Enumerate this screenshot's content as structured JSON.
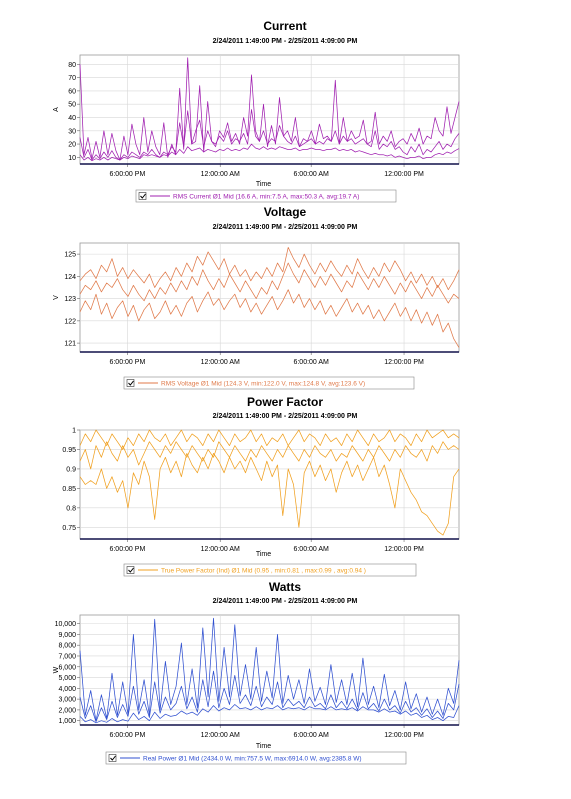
{
  "chart_data": [
    {
      "type": "line",
      "title": "Current",
      "subtitle": "2/24/2011 1:49:00 PM - 2/25/2011 4:09:00 PM",
      "xlabel": "Time",
      "ylabel": "A",
      "x_ticks": [
        "6:00:00 PM",
        "12:00:00 AM",
        "6:00:00 AM",
        "12:00:00 PM"
      ],
      "y_ticks": [
        10,
        20,
        30,
        40,
        50,
        60,
        70,
        80
      ],
      "ylim": [
        5,
        87
      ],
      "legend": "bottom",
      "legend_text": "RMS Current Ø1 Mid (16.6 A, min:7.5 A, max:50.3 A, avg:19.7 A)",
      "color": "#a020b0",
      "series": [
        {
          "values": [
            80,
            12,
            25,
            9,
            22,
            10,
            30,
            12,
            28,
            15,
            8,
            26,
            12,
            35,
            20,
            12,
            40,
            14,
            30,
            18,
            12,
            36,
            10,
            20,
            12,
            62,
            16,
            85,
            20,
            22,
            64,
            14,
            52,
            22,
            18,
            30,
            25,
            36,
            22,
            28,
            20,
            40,
            26,
            72,
            30,
            22,
            50,
            18,
            34,
            20,
            55,
            26,
            30,
            22,
            40,
            18,
            24,
            22,
            30,
            20,
            35,
            24,
            26,
            22,
            68,
            20,
            40,
            22,
            30,
            24,
            26,
            38,
            20,
            22,
            44,
            20,
            26,
            22,
            30,
            18,
            22,
            24,
            20,
            28,
            22,
            32,
            20,
            26,
            24,
            40,
            30,
            26,
            48,
            28,
            40,
            52
          ]
        },
        {
          "values": [
            25,
            10,
            16,
            8,
            12,
            9,
            14,
            10,
            15,
            10,
            8,
            12,
            10,
            14,
            12,
            10,
            14,
            12,
            16,
            12,
            10,
            14,
            12,
            18,
            14,
            36,
            18,
            45,
            20,
            30,
            38,
            18,
            30,
            22,
            20,
            26,
            22,
            30,
            20,
            24,
            22,
            28,
            20,
            46,
            26,
            22,
            30,
            20,
            24,
            22,
            34,
            26,
            22,
            20,
            26,
            18,
            20,
            22,
            24,
            20,
            22,
            20,
            24,
            22,
            30,
            20,
            26,
            22,
            24,
            20,
            22,
            24,
            20,
            18,
            30,
            16,
            20,
            18,
            22,
            16,
            18,
            14,
            12,
            18,
            14,
            20,
            12,
            16,
            14,
            18,
            22,
            16,
            20,
            18,
            24,
            28
          ]
        },
        {
          "values": [
            12,
            8,
            10,
            7.5,
            9,
            8,
            10,
            8,
            10,
            9,
            8,
            10,
            9,
            11,
            10,
            9,
            12,
            11,
            12,
            11,
            10,
            12,
            11,
            14,
            12,
            16,
            13,
            18,
            15,
            16,
            17,
            14,
            16,
            15,
            14,
            16,
            15,
            17,
            15,
            16,
            15,
            17,
            16,
            20,
            17,
            16,
            18,
            16,
            17,
            16,
            18,
            17,
            16,
            16,
            17,
            15,
            16,
            16,
            17,
            16,
            16,
            15,
            16,
            16,
            17,
            15,
            16,
            15,
            16,
            14,
            15,
            14,
            13,
            12,
            13,
            12,
            12,
            11,
            12,
            10,
            11,
            10,
            9,
            10,
            10,
            11,
            9,
            10,
            10,
            12,
            13,
            12,
            14,
            13,
            15,
            16.6
          ]
        }
      ]
    },
    {
      "type": "line",
      "title": "Voltage",
      "subtitle": "2/24/2011 1:49:00 PM - 2/25/2011 4:09:00 PM",
      "xlabel": "",
      "ylabel": "V",
      "x_ticks": [
        "6:00:00 PM",
        "12:00:00 AM",
        "6:00:00 AM",
        "12:00:00 PM"
      ],
      "y_ticks": [
        121,
        122,
        123,
        124,
        125
      ],
      "ylim": [
        120.6,
        125.5
      ],
      "legend": "bottom",
      "legend_text": "RMS Voltage Ø1 Mid (124.3 V, min:122.0 V, max:124.8 V, avg:123.6 V)",
      "color": "#e07a4a",
      "series": [
        {
          "values": [
            123.8,
            124.1,
            124.3,
            123.9,
            124.5,
            124.2,
            124.8,
            124.0,
            124.4,
            123.9,
            124.3,
            124.0,
            123.7,
            124.1,
            123.5,
            123.9,
            124.2,
            123.8,
            124.4,
            124.0,
            124.6,
            124.2,
            124.9,
            124.5,
            125.1,
            124.7,
            124.3,
            124.8,
            124.1,
            124.5,
            124.0,
            124.3,
            123.8,
            124.2,
            123.9,
            124.4,
            124.0,
            124.6,
            124.2,
            125.3,
            124.8,
            124.4,
            125.0,
            124.5,
            124.1,
            124.6,
            124.2,
            124.7,
            124.3,
            124.0,
            124.5,
            124.1,
            124.8,
            124.3,
            123.9,
            124.4,
            124.0,
            124.6,
            124.2,
            124.7,
            124.3,
            123.8,
            124.2,
            123.7,
            124.1,
            123.6,
            124.0,
            123.5,
            123.9,
            123.4,
            123.8,
            124.3
          ]
        },
        {
          "values": [
            123.2,
            123.6,
            123.4,
            123.8,
            123.3,
            123.7,
            123.5,
            123.9,
            123.4,
            123.1,
            123.6,
            123.2,
            122.9,
            123.4,
            123.0,
            123.5,
            123.2,
            123.7,
            123.3,
            123.8,
            123.4,
            124.0,
            123.6,
            124.3,
            123.8,
            123.4,
            123.9,
            123.5,
            124.1,
            123.7,
            123.3,
            123.8,
            123.4,
            123.0,
            123.5,
            123.2,
            123.8,
            123.4,
            124.0,
            124.6,
            124.1,
            123.7,
            124.3,
            123.9,
            123.5,
            124.0,
            123.6,
            124.1,
            123.7,
            123.3,
            123.8,
            123.5,
            124.2,
            123.8,
            123.4,
            123.9,
            123.5,
            124.0,
            123.6,
            123.2,
            123.7,
            123.3,
            123.8,
            123.4,
            123.0,
            123.5,
            123.1,
            123.6,
            123.2,
            122.8,
            123.2,
            123.0
          ]
        },
        {
          "values": [
            122.4,
            122.9,
            122.5,
            123.2,
            122.3,
            122.8,
            122.1,
            122.6,
            122.9,
            122.2,
            122.7,
            122.0,
            122.5,
            122.8,
            122.1,
            122.4,
            122.9,
            122.3,
            122.7,
            122.2,
            122.8,
            123.1,
            122.4,
            122.9,
            123.3,
            122.7,
            123.0,
            122.5,
            122.9,
            123.2,
            122.6,
            123.0,
            122.4,
            122.8,
            122.3,
            122.7,
            123.1,
            122.5,
            122.9,
            123.4,
            122.8,
            123.2,
            122.6,
            123.0,
            122.5,
            122.9,
            122.3,
            122.7,
            122.2,
            122.6,
            123.0,
            122.4,
            122.8,
            122.3,
            122.7,
            122.1,
            122.5,
            122.0,
            122.4,
            122.8,
            122.2,
            122.6,
            122.0,
            122.5,
            121.9,
            122.4,
            121.8,
            122.3,
            121.5,
            121.9,
            121.2,
            120.8
          ]
        }
      ]
    },
    {
      "type": "line",
      "title": "Power Factor",
      "subtitle": "2/24/2011 1:49:00 PM - 2/25/2011 4:09:00 PM",
      "xlabel": "Time",
      "ylabel": "",
      "x_ticks": [
        "6:00:00 PM",
        "12:00:00 AM",
        "6:00:00 AM",
        "12:00:00 PM"
      ],
      "y_ticks": [
        0.75,
        0.8,
        0.85,
        0.9,
        0.95,
        1
      ],
      "ylim": [
        0.72,
        1.0
      ],
      "legend": "bottom",
      "legend_text": "True Power Factor (Ind) Ø1 Mid (0.95 , min:0.81 , max:0.99 , avg:0.94 )",
      "color": "#f0a020",
      "series": [
        {
          "values": [
            0.96,
            0.99,
            0.97,
            1.0,
            0.98,
            0.96,
            0.99,
            0.97,
            0.95,
            0.98,
            0.96,
            0.99,
            0.97,
            1.0,
            0.98,
            0.97,
            0.99,
            0.96,
            0.98,
            1.0,
            0.97,
            0.99,
            0.98,
            0.96,
            0.99,
            0.97,
            1.0,
            0.98,
            0.96,
            0.99,
            0.97,
            0.98,
            1.0,
            0.97,
            0.99,
            0.96,
            0.98,
            0.97,
            0.99,
            0.96,
            0.98,
            1.0,
            0.97,
            0.99,
            0.98,
            0.96,
            0.99,
            0.97,
            0.98,
            0.96,
            0.99,
            0.97,
            1.0,
            0.98,
            0.96,
            0.99,
            0.97,
            0.98,
            1.0,
            0.97,
            0.99,
            0.98,
            0.96,
            0.99,
            0.97,
            1.0,
            0.98,
            0.99,
            1.0,
            0.98,
            0.99,
            0.98
          ]
        },
        {
          "values": [
            0.92,
            0.95,
            0.9,
            0.96,
            0.93,
            0.97,
            0.94,
            0.92,
            0.96,
            0.93,
            0.95,
            0.91,
            0.94,
            0.97,
            0.95,
            0.93,
            0.96,
            0.94,
            0.97,
            0.95,
            0.93,
            0.96,
            0.94,
            0.92,
            0.95,
            0.93,
            0.97,
            0.95,
            0.93,
            0.96,
            0.94,
            0.92,
            0.95,
            0.93,
            0.96,
            0.94,
            0.92,
            0.95,
            0.93,
            0.96,
            0.94,
            0.92,
            0.95,
            0.93,
            0.96,
            0.94,
            0.93,
            0.95,
            0.92,
            0.94,
            0.93,
            0.96,
            0.94,
            0.92,
            0.95,
            0.93,
            0.96,
            0.94,
            0.92,
            0.95,
            0.93,
            0.96,
            0.94,
            0.93,
            0.95,
            0.92,
            0.96,
            0.94,
            0.97,
            0.95,
            0.96,
            0.95
          ]
        },
        {
          "values": [
            0.88,
            0.86,
            0.87,
            0.86,
            0.9,
            0.85,
            0.88,
            0.84,
            0.87,
            0.8,
            0.89,
            0.86,
            0.92,
            0.88,
            0.77,
            0.9,
            0.93,
            0.89,
            0.92,
            0.88,
            0.94,
            0.91,
            0.89,
            0.93,
            0.9,
            0.94,
            0.92,
            0.89,
            0.93,
            0.9,
            0.92,
            0.89,
            0.93,
            0.9,
            0.87,
            0.92,
            0.88,
            0.91,
            0.78,
            0.9,
            0.86,
            0.75,
            0.89,
            0.92,
            0.88,
            0.91,
            0.87,
            0.9,
            0.84,
            0.89,
            0.92,
            0.88,
            0.91,
            0.87,
            0.9,
            0.93,
            0.88,
            0.91,
            0.86,
            0.8,
            0.9,
            0.87,
            0.84,
            0.82,
            0.79,
            0.78,
            0.76,
            0.74,
            0.73,
            0.76,
            0.88,
            0.9
          ]
        }
      ]
    },
    {
      "type": "line",
      "title": "Watts",
      "subtitle": "2/24/2011 1:49:00 PM - 2/25/2011 4:09:00 PM",
      "xlabel": "Time",
      "ylabel": "W",
      "x_ticks": [
        "6:00:00 PM",
        "12:00:00 AM",
        "6:00:00 AM",
        "12:00:00 PM"
      ],
      "y_ticks": [
        1000,
        2000,
        3000,
        4000,
        5000,
        6000,
        7000,
        8000,
        9000,
        10000
      ],
      "y_tick_labels": [
        "1,000",
        "2,000",
        "3,000",
        "4,000",
        "5,000",
        "6,000",
        "7,000",
        "8,000",
        "9,000",
        "10,000"
      ],
      "ylim": [
        600,
        10800
      ],
      "legend": "bottom",
      "legend_text": "Real Power Ø1 Mid (2434.0 W, min:757.5 W, max:6914.0 W, avg:2385.8 W)",
      "color": "#3050d0",
      "series": [
        {
          "values": [
            7500,
            1500,
            3800,
            1000,
            3400,
            1200,
            5400,
            1500,
            4600,
            1600,
            9000,
            2000,
            4800,
            1500,
            10400,
            2000,
            6500,
            2500,
            4200,
            8200,
            2500,
            5800,
            2200,
            9600,
            3200,
            10500,
            2800,
            7800,
            3200,
            9900,
            3300,
            6200,
            3000,
            7800,
            2800,
            5600,
            3100,
            9000,
            2600,
            5200,
            3000,
            4800,
            2600,
            5800,
            2800,
            4100,
            2500,
            6200,
            2700,
            4800,
            2500,
            5400,
            2300,
            6800,
            2500,
            4200,
            2200,
            5300,
            2400,
            3800,
            2000,
            4600,
            2100,
            3500,
            1800,
            3200,
            1600,
            3000,
            1500,
            4000,
            2600,
            6600
          ]
        },
        {
          "values": [
            3200,
            1200,
            2400,
            900,
            2200,
            1100,
            2800,
            1300,
            2500,
            1400,
            4200,
            1600,
            2800,
            1300,
            4600,
            1700,
            3200,
            2000,
            2600,
            4200,
            2100,
            3200,
            1800,
            4800,
            2300,
            5600,
            2200,
            4000,
            2500,
            5200,
            2600,
            3400,
            2400,
            4200,
            2300,
            3200,
            2500,
            4600,
            2200,
            3000,
            2400,
            2800,
            2200,
            3200,
            2300,
            2600,
            2100,
            3400,
            2200,
            2800,
            2100,
            3000,
            2000,
            3600,
            2100,
            2600,
            1900,
            3000,
            2000,
            2400,
            1700,
            2800,
            1800,
            2200,
            1500,
            2100,
            1300,
            1900,
            1200,
            2600,
            2000,
            4400
          ]
        },
        {
          "values": [
            1400,
            900,
            1100,
            800,
            1000,
            850,
            1200,
            900,
            1100,
            950,
            1700,
            1100,
            1400,
            1000,
            1800,
            1200,
            1600,
            1400,
            1500,
            1900,
            1600,
            1800,
            1500,
            2100,
            1800,
            2400,
            1900,
            2200,
            2000,
            2500,
            2100,
            2200,
            2000,
            2300,
            2000,
            2200,
            2100,
            2400,
            2000,
            2200,
            2100,
            2200,
            2000,
            2300,
            2100,
            2100,
            2000,
            2300,
            2000,
            2100,
            2000,
            2200,
            1900,
            2300,
            2000,
            2000,
            1800,
            2100,
            1800,
            1900,
            1600,
            1900,
            1500,
            1700,
            1300,
            1500,
            1100,
            1300,
            1000,
            1400,
            1300,
            2400
          ]
        }
      ]
    }
  ]
}
